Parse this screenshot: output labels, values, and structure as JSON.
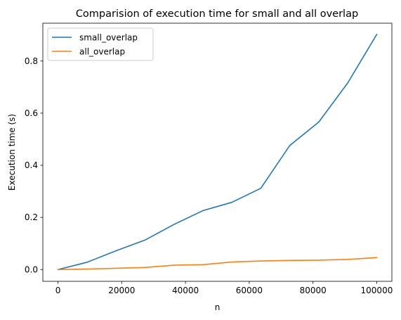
{
  "chart_data": {
    "type": "line",
    "title": "Comparision of execution time for small and all overlap",
    "xlabel": "n",
    "ylabel": "Execution time (s)",
    "xlim": [
      -4750,
      104750
    ],
    "ylim": [
      -0.045,
      0.945
    ],
    "xticks": [
      0,
      20000,
      40000,
      60000,
      80000,
      100000
    ],
    "xtick_labels": [
      "0",
      "20000",
      "40000",
      "60000",
      "80000",
      "100000"
    ],
    "yticks": [
      0.0,
      0.2,
      0.4,
      0.6,
      0.8
    ],
    "ytick_labels": [
      "0.0",
      "0.2",
      "0.4",
      "0.6",
      "0.8"
    ],
    "grid": false,
    "legend_position": "top-left",
    "series": [
      {
        "name": "small_overlap",
        "color": "#1f77b4",
        "x": [
          0,
          9091,
          18182,
          27273,
          36364,
          45455,
          54545,
          63636,
          72727,
          81818,
          90909,
          100000
        ],
        "y": [
          0.0,
          0.028,
          0.072,
          0.113,
          0.173,
          0.226,
          0.258,
          0.312,
          0.476,
          0.566,
          0.716,
          0.902
        ]
      },
      {
        "name": "all_overlap",
        "color": "#ff7f0e",
        "x": [
          0,
          9091,
          18182,
          27273,
          36364,
          45455,
          54545,
          63636,
          72727,
          81818,
          90909,
          100000
        ],
        "y": [
          0.0,
          0.002,
          0.005,
          0.008,
          0.017,
          0.019,
          0.029,
          0.033,
          0.035,
          0.036,
          0.039,
          0.046
        ]
      }
    ]
  }
}
